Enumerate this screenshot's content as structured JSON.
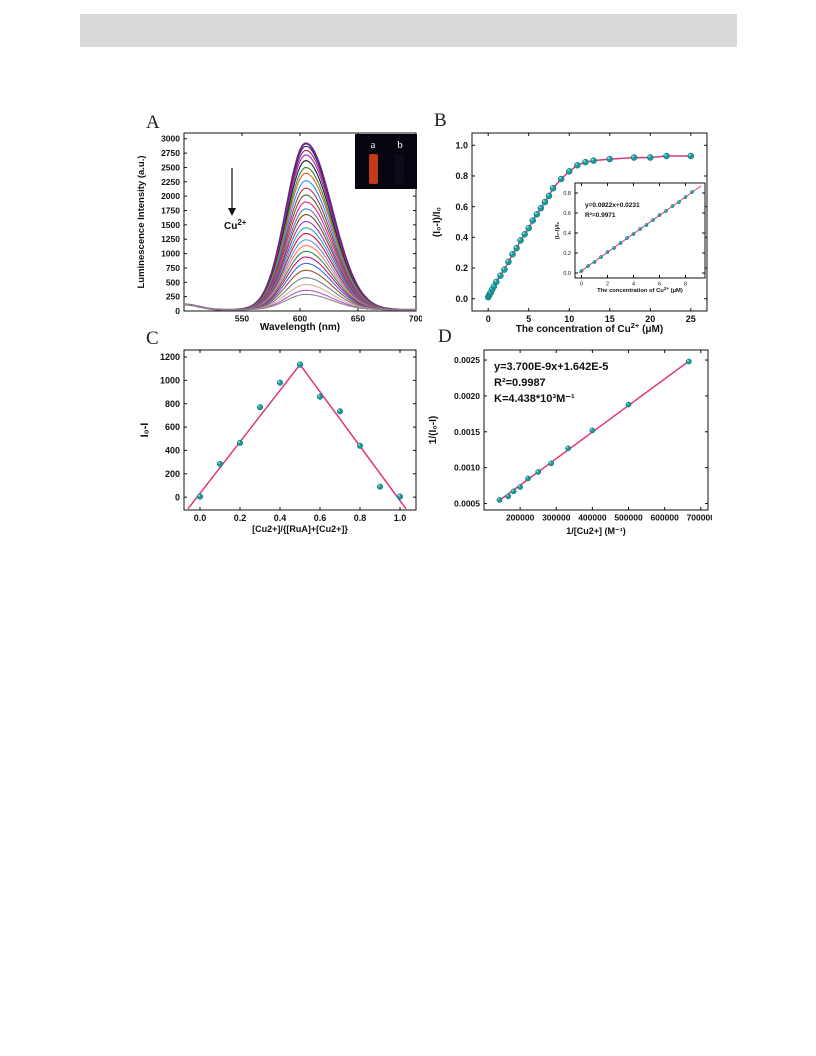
{
  "header": {
    "bar_color": "#d9d9d9"
  },
  "panels": {
    "A": "A",
    "B": "B",
    "C": "C",
    "D": "D"
  },
  "chart_data": [
    {
      "type": "line",
      "panel": "A",
      "xlabel": "Wavelength (nm)",
      "ylabel": "Luminescence Intensity (a.u.)",
      "xlim": [
        500,
        700
      ],
      "ylim": [
        0,
        3100
      ],
      "xticks": [
        550,
        600,
        650,
        700
      ],
      "yticks": [
        0,
        250,
        500,
        750,
        1000,
        1250,
        1500,
        1750,
        2000,
        2250,
        2500,
        2750,
        3000
      ],
      "peak_wavelength": 605,
      "peak_intensities": [
        2900,
        2850,
        2780,
        2700,
        2600,
        2480,
        2380,
        2250,
        2120,
        2000,
        1880,
        1760,
        1660,
        1540,
        1430,
        1330,
        1220,
        1120,
        1020,
        920,
        810,
        690,
        560,
        440,
        340,
        270
      ],
      "colors": [
        "#6a2b6e",
        "#2b2bb0",
        "#c01f2f",
        "#8a2be2",
        "#1f1f1f",
        "#3a8a3a",
        "#d2691e",
        "#1e90ff",
        "#b03060",
        "#556b2f",
        "#ff1493",
        "#4682b4",
        "#8b4513",
        "#9932cc",
        "#20b2aa",
        "#dc143c",
        "#6495ed",
        "#ff7f50",
        "#2e8b57",
        "#c71585",
        "#4169e1",
        "#a0522d",
        "#708090",
        "#d2b48c",
        "#ba55d3",
        "#888888"
      ],
      "annotation": {
        "arrow_label": "Cu",
        "arrow_label_sup": "2+"
      },
      "inset": {
        "labels": [
          "a",
          "b"
        ]
      }
    },
    {
      "type": "scatter",
      "panel": "B",
      "xlabel": "The concentration of Cu",
      "xlabel_sup": "2+",
      "xlabel_unit": " (μM)",
      "ylabel": "(I₀-I)/I₀",
      "xlim": [
        -2,
        27
      ],
      "ylim": [
        -0.08,
        1.08
      ],
      "xticks": [
        0,
        5,
        10,
        15,
        20,
        25
      ],
      "yticks": [
        0.0,
        0.2,
        0.4,
        0.6,
        0.8,
        1.0
      ],
      "x": [
        0,
        0.1,
        0.2,
        0.3,
        0.5,
        0.7,
        1.0,
        1.5,
        2.0,
        2.5,
        3.0,
        3.5,
        4.0,
        4.5,
        5.0,
        5.5,
        6.0,
        6.5,
        7.0,
        7.5,
        8.0,
        9.0,
        10.0,
        11.0,
        12.0,
        13.0,
        15.0,
        18.0,
        20.0,
        22.0,
        25.0
      ],
      "y": [
        0.01,
        0.02,
        0.03,
        0.04,
        0.06,
        0.08,
        0.11,
        0.15,
        0.19,
        0.24,
        0.29,
        0.33,
        0.38,
        0.42,
        0.46,
        0.51,
        0.55,
        0.59,
        0.63,
        0.67,
        0.72,
        0.78,
        0.83,
        0.87,
        0.89,
        0.9,
        0.91,
        0.92,
        0.92,
        0.93,
        0.93
      ],
      "inset": {
        "xlabel": "The concentration of Cu",
        "xlabel_sup": "2+",
        "xlabel_unit": " (μM)",
        "ylabel": "(I₀-I)/I₀",
        "equation": "y=0.0922x+0.0231",
        "r2": "R²=0.9971",
        "xlim": [
          -0.5,
          9.5
        ],
        "ylim": [
          -0.05,
          0.9
        ],
        "xticks": [
          0,
          2,
          4,
          6,
          8
        ],
        "yticks": [
          0.0,
          0.2,
          0.4,
          0.6,
          0.8
        ],
        "x": [
          0,
          0.5,
          1,
          1.5,
          2,
          2.5,
          3,
          3.5,
          4,
          4.5,
          5,
          5.5,
          6,
          6.5,
          7,
          7.5,
          8,
          8.5
        ],
        "y": [
          0.02,
          0.07,
          0.11,
          0.16,
          0.21,
          0.25,
          0.3,
          0.35,
          0.39,
          0.44,
          0.48,
          0.53,
          0.58,
          0.62,
          0.67,
          0.71,
          0.76,
          0.81
        ]
      }
    },
    {
      "type": "scatter",
      "panel": "C",
      "xlabel": "[Cu2+]/{[RuA]+[Cu2+]}",
      "ylabel": "I₀-I",
      "xlim": [
        -0.08,
        1.08
      ],
      "ylim": [
        -110,
        1260
      ],
      "xticks": [
        0.0,
        0.2,
        0.4,
        0.6,
        0.8,
        1.0
      ],
      "yticks": [
        0,
        200,
        400,
        600,
        800,
        1000,
        1200
      ],
      "x": [
        0.0,
        0.1,
        0.2,
        0.3,
        0.4,
        0.5,
        0.6,
        0.7,
        0.8,
        0.9,
        1.0
      ],
      "y": [
        5,
        285,
        465,
        770,
        980,
        1135,
        860,
        735,
        440,
        90,
        5
      ],
      "fit_lines": [
        [
          [
            -0.06,
            -100
          ],
          [
            0.5,
            1135
          ]
        ],
        [
          [
            0.5,
            1135
          ],
          [
            1.03,
            -100
          ]
        ]
      ]
    },
    {
      "type": "scatter",
      "panel": "D",
      "xlabel": "1/[Cu2+] (M⁻¹)",
      "ylabel": "1/(I₀-I)",
      "xlim": [
        100000,
        720000
      ],
      "ylim": [
        0.00041,
        0.00264
      ],
      "xticks": [
        200000,
        300000,
        400000,
        500000,
        600000,
        700000
      ],
      "yticks": [
        0.0005,
        0.001,
        0.0015,
        0.002,
        0.0025
      ],
      "x": [
        143000,
        167000,
        182000,
        200000,
        222000,
        250000,
        286000,
        333000,
        400000,
        500000,
        667000
      ],
      "y": [
        0.00055,
        0.0006,
        0.00067,
        0.00073,
        0.00085,
        0.00094,
        0.00106,
        0.00127,
        0.00152,
        0.00188,
        0.00248
      ],
      "fit": {
        "slope": 3.7e-09,
        "intercept": 1.642e-05,
        "x_range": [
          140000,
          667000
        ]
      },
      "annotations": [
        "y=3.700E-9x+1.642E-5",
        "R²=0.9987",
        "K=4.438*10³M⁻¹"
      ]
    }
  ],
  "colors": {
    "fit_line": "#e0347e",
    "marker": "#1a9a9a",
    "marker_highlight": "#7fe0e0"
  }
}
